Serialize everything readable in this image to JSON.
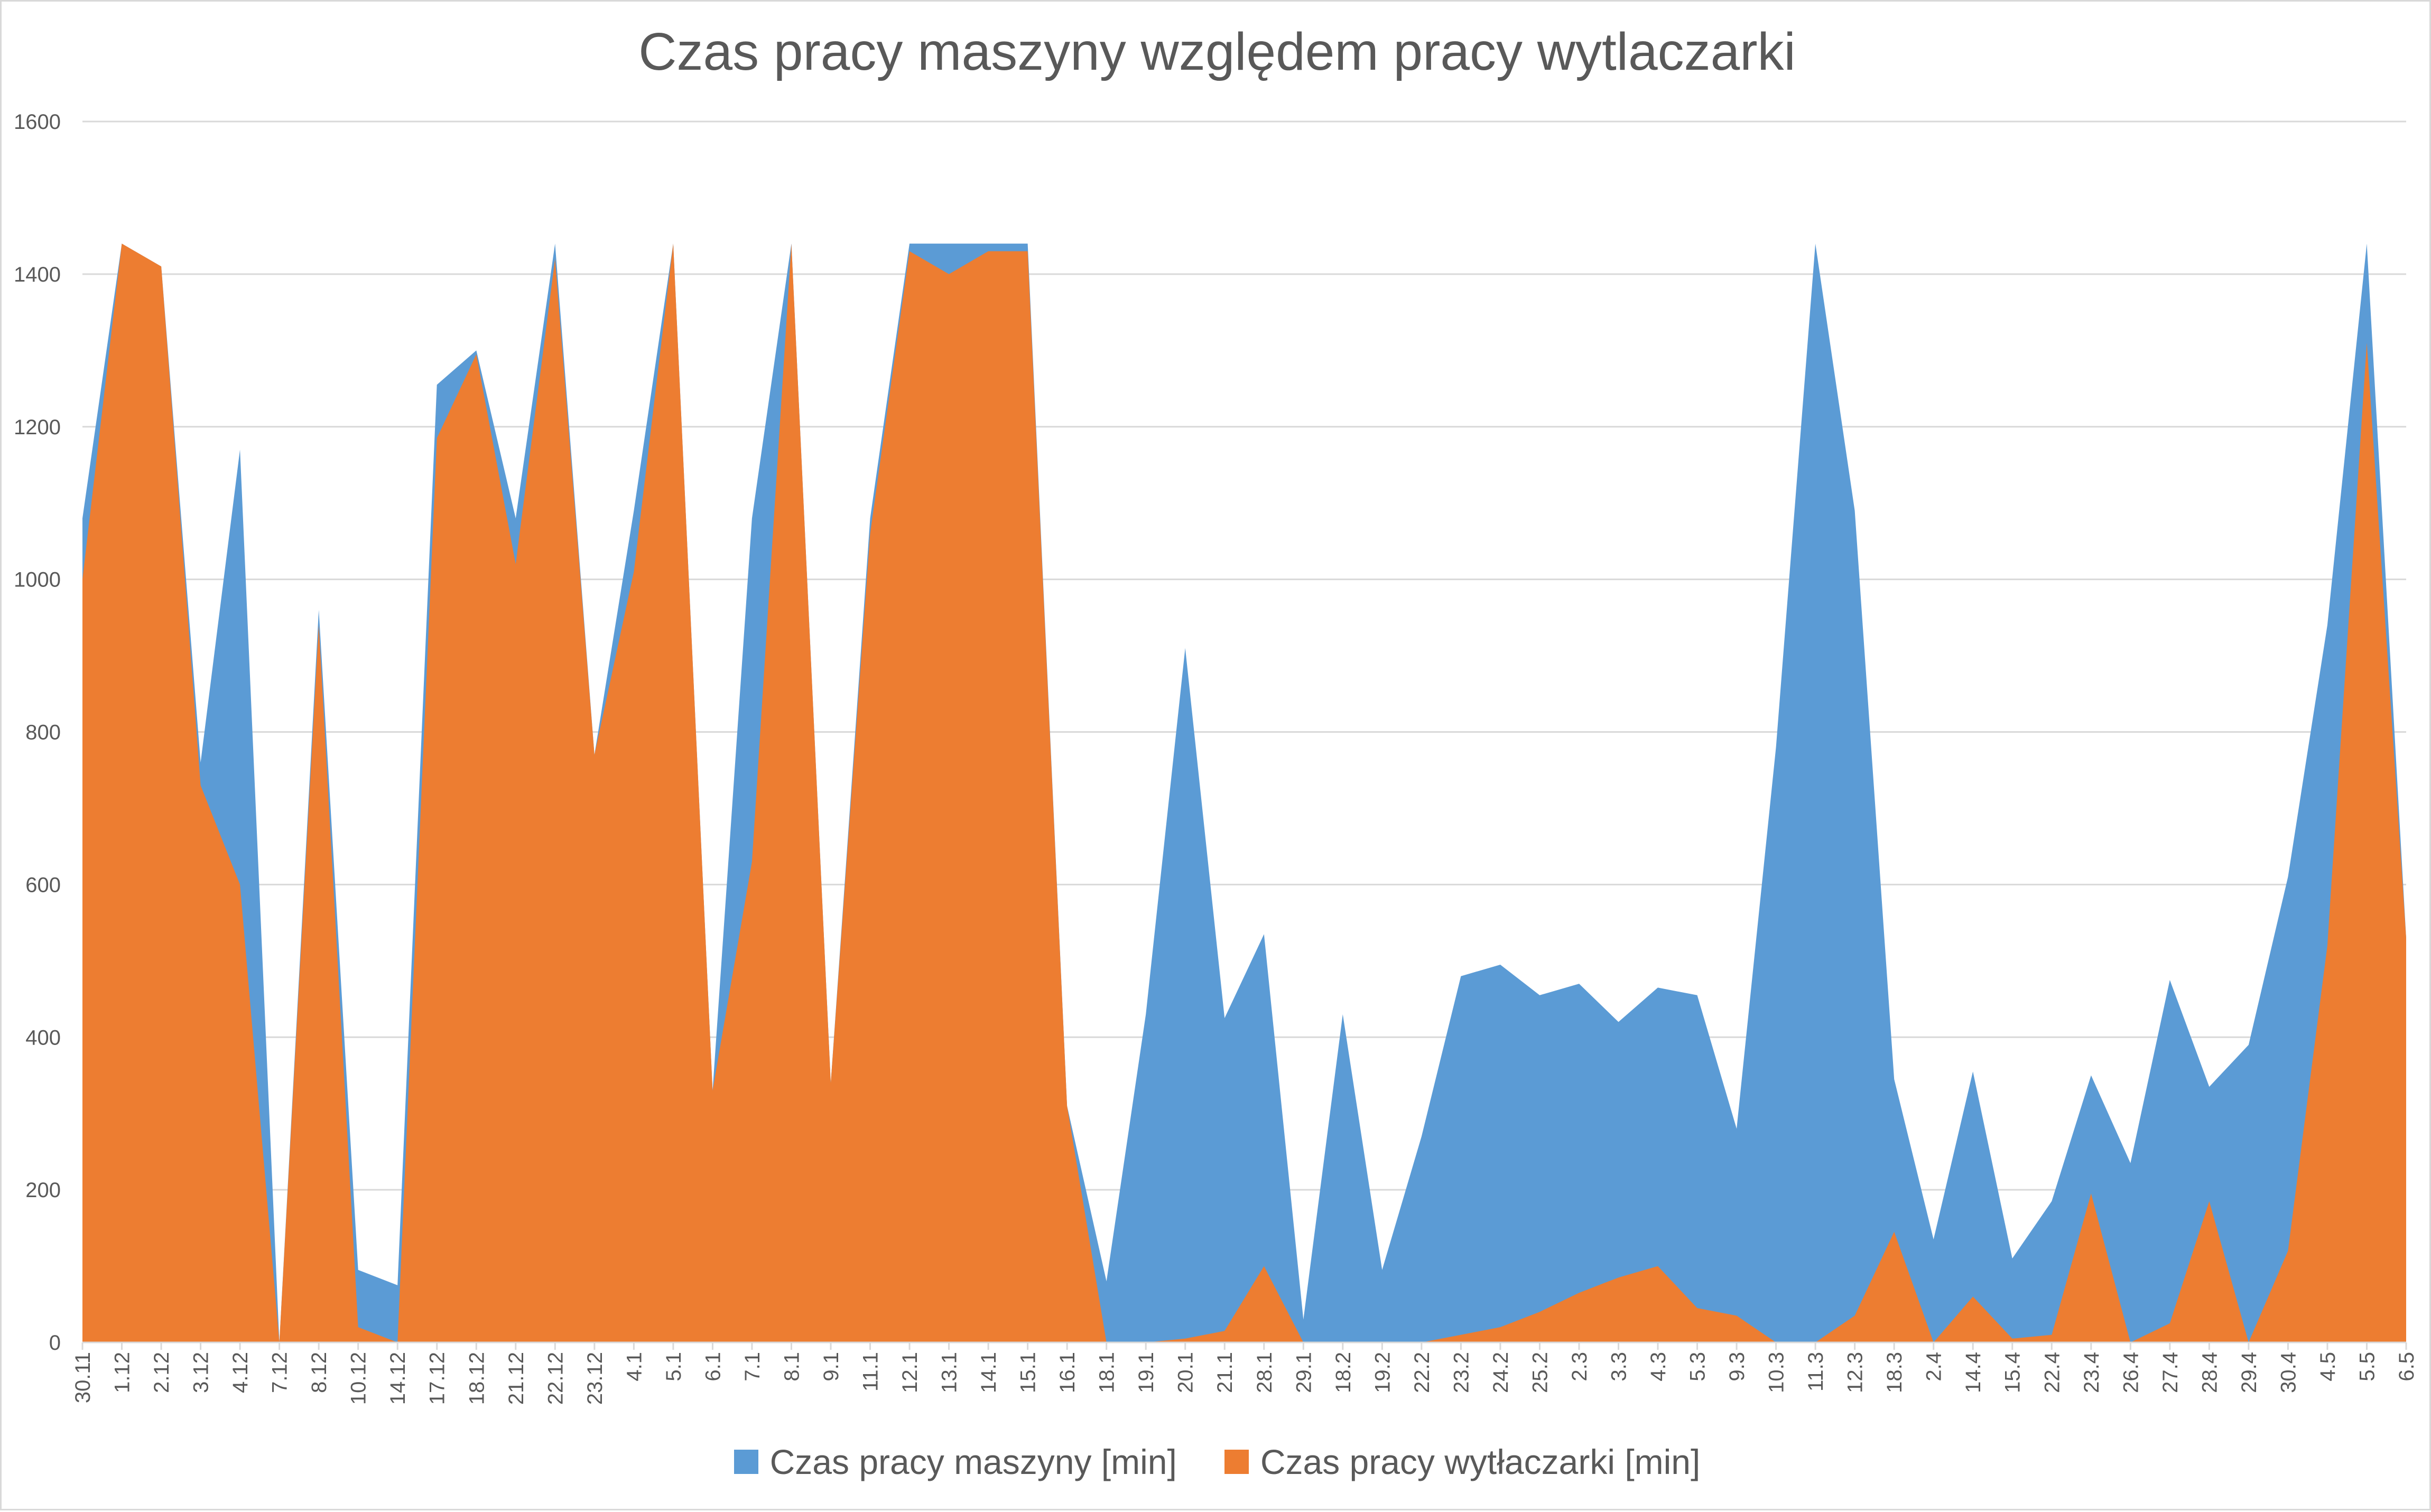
{
  "chart_data": {
    "type": "area",
    "title": "Czas pracy maszyny względem pracy wytlaczarki",
    "xlabel": "",
    "ylabel": "",
    "ylim": [
      0,
      1600
    ],
    "yticks": [
      0,
      200,
      400,
      600,
      800,
      1000,
      1200,
      1400,
      1600
    ],
    "grid": true,
    "legend_position": "bottom",
    "categories": [
      "30.11",
      "1.12",
      "2.12",
      "3.12",
      "4.12",
      "7.12",
      "8.12",
      "10.12",
      "14.12",
      "17.12",
      "18.12",
      "21.12",
      "22.12",
      "23.12",
      "4.1",
      "5.1",
      "6.1",
      "7.1",
      "8.1",
      "9.1",
      "11.1",
      "12.1",
      "13.1",
      "14.1",
      "15.1",
      "16.1",
      "18.1",
      "19.1",
      "20.1",
      "21.1",
      "28.1",
      "29.1",
      "18.2",
      "19.2",
      "22.2",
      "23.2",
      "24.2",
      "25.2",
      "2.3",
      "3.3",
      "4.3",
      "5.3",
      "9.3",
      "10.3",
      "11.3",
      "12.3",
      "18.3",
      "2.4",
      "14.4",
      "15.4",
      "22.4",
      "23.4",
      "26.4",
      "27.4",
      "28.4",
      "29.4",
      "30.4",
      "4.5",
      "5.5",
      "6.5"
    ],
    "series": [
      {
        "name": "Czas pracy maszyny [min]",
        "color": "#5b9bd5",
        "values": [
          1080,
          1440,
          1410,
          760,
          1170,
          0,
          960,
          95,
          75,
          1255,
          1300,
          1080,
          1440,
          770,
          1090,
          1440,
          330,
          1080,
          1440,
          340,
          1080,
          1440,
          1440,
          1440,
          1440,
          310,
          80,
          430,
          910,
          425,
          535,
          30,
          430,
          95,
          270,
          480,
          495,
          455,
          470,
          420,
          465,
          455,
          280,
          780,
          1440,
          1090,
          345,
          135,
          355,
          110,
          185,
          350,
          235,
          475,
          335,
          390,
          610,
          940,
          1440,
          530
        ]
      },
      {
        "name": "Czas pracy wytłaczarki [min]",
        "color": "#ed7d31",
        "values": [
          1000,
          1440,
          1410,
          730,
          600,
          0,
          940,
          20,
          0,
          1185,
          1295,
          1020,
          1420,
          770,
          1010,
          1440,
          330,
          630,
          1440,
          340,
          1060,
          1430,
          1400,
          1430,
          1430,
          310,
          0,
          0,
          5,
          15,
          100,
          0,
          0,
          0,
          0,
          10,
          20,
          40,
          65,
          85,
          100,
          45,
          35,
          0,
          0,
          35,
          145,
          0,
          60,
          5,
          10,
          195,
          0,
          25,
          185,
          0,
          120,
          520,
          1310,
          530
        ]
      }
    ]
  }
}
